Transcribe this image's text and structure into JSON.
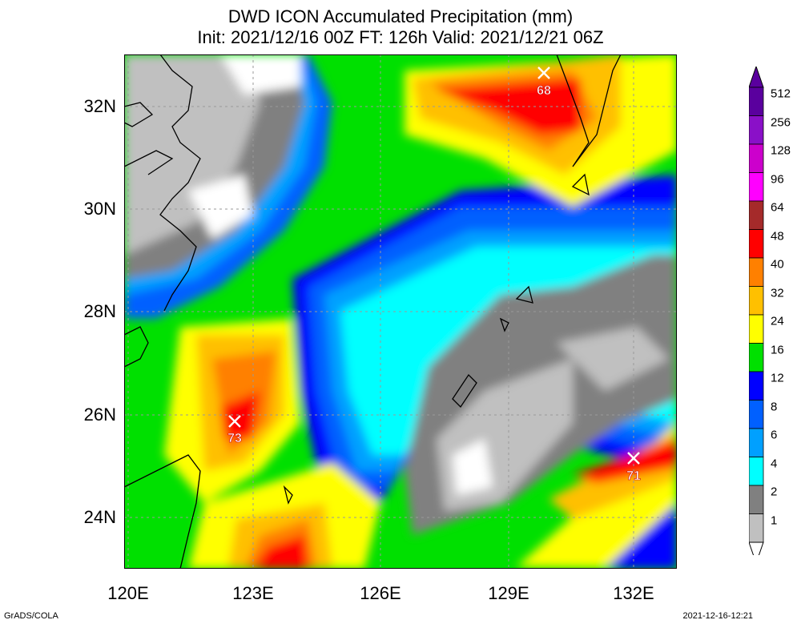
{
  "title": {
    "line1": "DWD ICON Accumulated Precipitation (mm)",
    "line2": "Init: 2021/12/16 00Z  FT: 126h  Valid: 2021/12/21 06Z"
  },
  "axes": {
    "lat_labels": [
      "32N",
      "30N",
      "28N",
      "26N",
      "24N"
    ],
    "lon_labels": [
      "120E",
      "123E",
      "126E",
      "129E",
      "132E"
    ]
  },
  "colorbar": {
    "levels": [
      "512",
      "256",
      "128",
      "96",
      "64",
      "48",
      "40",
      "32",
      "24",
      "16",
      "12",
      "8",
      "6",
      "4",
      "2",
      "1"
    ],
    "colors": [
      "#5a009e",
      "#8a10c8",
      "#cc00cc",
      "#ff00ff",
      "#a52a2a",
      "#ff0000",
      "#ff8000",
      "#ffc000",
      "#ffff00",
      "#00e000",
      "#0000ff",
      "#0060ff",
      "#00a0ff",
      "#00ffff",
      "#808080",
      "#c0c0c0"
    ]
  },
  "maxima": [
    {
      "value": "68"
    },
    {
      "value": "73"
    },
    {
      "value": "71"
    }
  ],
  "footer": {
    "left": "GrADS/COLA",
    "right": "2021-12-16-12:21"
  }
}
